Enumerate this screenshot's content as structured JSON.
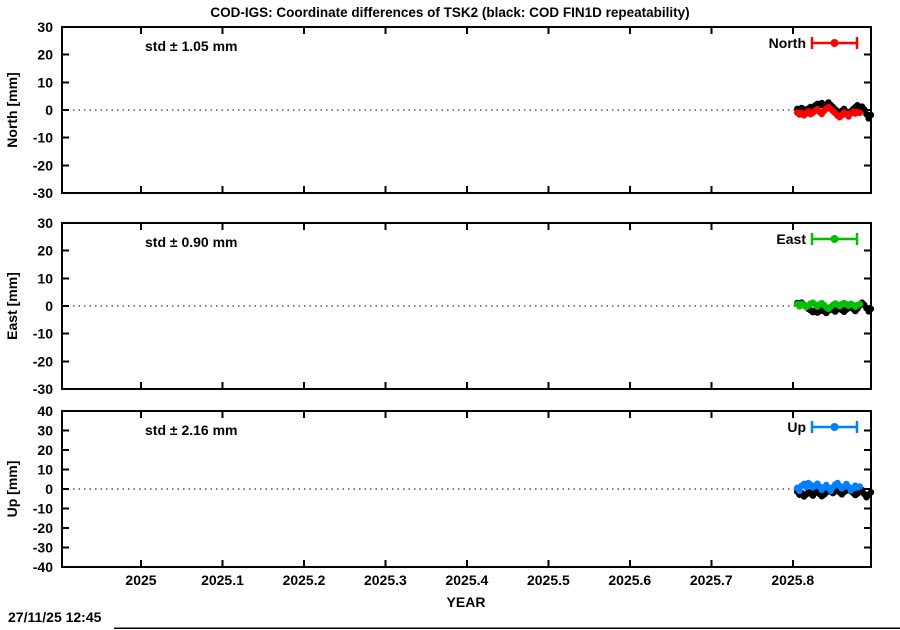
{
  "title": "COD-IGS: Coordinate differences of TSK2 (black: COD FIN1D repeatability)",
  "timestamp": "27/11/25 12:45",
  "x_axis": {
    "label": "YEAR",
    "tick_labels": [
      "2025",
      "2025.1",
      "2025.2",
      "2025.3",
      "2025.4",
      "2025.5",
      "2025.6",
      "2025.7",
      "2025.8"
    ],
    "tick_values": [
      2025,
      2025.1,
      2025.2,
      2025.3,
      2025.4,
      2025.5,
      2025.6,
      2025.7,
      2025.8
    ],
    "xlim": [
      2024.903,
      2025.896
    ]
  },
  "colors": {
    "north": "#ff0000",
    "east": "#00c000",
    "up": "#0080ff",
    "repeatability": "#000000"
  },
  "chart_data": [
    {
      "type": "scatter",
      "id": "north",
      "ylabel": "North [mm]",
      "std_label": "std ± 1.05 mm",
      "std_mm": 1.05,
      "legend": "North",
      "color": "#ff0000",
      "ylim": [
        -30,
        30
      ],
      "yticks": [
        30,
        20,
        10,
        0,
        -10,
        -20,
        -30
      ],
      "ytick_labels": [
        "30",
        "20",
        "10",
        "0",
        "-10",
        "-20",
        "-30"
      ],
      "zero_line": true,
      "series": [
        {
          "name": "COD-IGS North difference",
          "color": "#ff0000",
          "x_start": 2025.8055,
          "x_step": 0.00274,
          "values": [
            -0.9,
            -1.6,
            -1.1,
            -1.9,
            -1.3,
            -0.5,
            -1.5,
            -0.9,
            -0.2,
            0.3,
            -0.7,
            -1.4,
            -0.3,
            0.5,
            1.0,
            0.4,
            -0.4,
            -1.1,
            -2.0,
            -2.6,
            -1.8,
            -0.9,
            -1.5,
            -2.3,
            -1.2,
            -0.6,
            -1.3,
            -0.8,
            -1.0
          ]
        },
        {
          "name": "COD FIN1D repeatability",
          "color": "#000000",
          "x_start": 2025.8055,
          "x_step": 0.00274,
          "values": [
            0.4,
            -0.2,
            0.7,
            0.2,
            -0.5,
            0.5,
            1.1,
            0.6,
            1.6,
            2.2,
            1.8,
            2.5,
            1.4,
            2.0,
            2.7,
            1.8,
            1.0,
            0.2,
            -0.5,
            -1.0,
            -0.3,
            0.4,
            -0.7,
            -1.3,
            -0.5,
            0.3,
            1.0,
            1.7,
            0.5,
            1.2,
            0.2,
            -1.5,
            -3.0,
            -1.8
          ]
        }
      ]
    },
    {
      "type": "scatter",
      "id": "east",
      "ylabel": "East [mm]",
      "std_label": "std ± 0.90 mm",
      "std_mm": 0.9,
      "legend": "East",
      "color": "#00c000",
      "ylim": [
        -30,
        30
      ],
      "yticks": [
        30,
        20,
        10,
        0,
        -10,
        -20,
        -30
      ],
      "ytick_labels": [
        "30",
        "20",
        "10",
        "0",
        "-10",
        "-20",
        "-30"
      ],
      "zero_line": true,
      "series": [
        {
          "name": "COD-IGS East difference",
          "color": "#00c000",
          "x_start": 2025.8055,
          "x_step": 0.00274,
          "values": [
            0.7,
            -0.1,
            0.8,
            0.3,
            -0.4,
            0.2,
            0.9,
            1.2,
            0.5,
            -0.2,
            0.6,
            1.0,
            0.3,
            -0.5,
            -1.0,
            -0.3,
            0.4,
            0.9,
            0.5,
            -0.1,
            0.7,
            1.1,
            0.6,
            0.1,
            0.8,
            0.4,
            -0.3,
            0.3,
            0.7
          ]
        },
        {
          "name": "COD FIN1D repeatability",
          "color": "#000000",
          "x_start": 2025.8055,
          "x_step": 0.00274,
          "values": [
            1.1,
            0.5,
            1.2,
            0.4,
            -0.3,
            -1.0,
            -1.6,
            -2.2,
            -1.7,
            -2.4,
            -1.8,
            -1.1,
            -1.9,
            -2.5,
            -1.6,
            -0.8,
            -1.4,
            -2.0,
            -1.2,
            -0.6,
            -1.5,
            -2.1,
            -1.3,
            -0.7,
            -0.2,
            -1.0,
            -1.8,
            -0.9,
            0.3,
            1.2,
            0.4,
            -0.8,
            -1.9,
            -1.0
          ]
        }
      ]
    },
    {
      "type": "scatter",
      "id": "up",
      "ylabel": "Up [mm]",
      "std_label": "std ± 2.16 mm",
      "std_mm": 2.16,
      "legend": "Up",
      "color": "#0080ff",
      "ylim": [
        -40,
        40
      ],
      "yticks": [
        40,
        30,
        20,
        10,
        0,
        -10,
        -20,
        -30,
        -40
      ],
      "ytick_labels": [
        "40",
        "30",
        "20",
        "10",
        "0",
        "-10",
        "-20",
        "-30",
        "-40"
      ],
      "zero_line": true,
      "series": [
        {
          "name": "COD-IGS Up difference",
          "color": "#0080ff",
          "x_start": 2025.8055,
          "x_step": 0.00274,
          "values": [
            0.6,
            -1.0,
            1.7,
            2.6,
            1.1,
            3.1,
            2.1,
            0.9,
            1.6,
            2.7,
            1.3,
            -0.4,
            0.7,
            2.0,
            0.5,
            -0.9,
            0.9,
            2.3,
            3.0,
            1.5,
            0.3,
            1.2,
            2.5,
            1.0,
            -0.7,
            0.4,
            1.7,
            0.8,
            1.3
          ]
        },
        {
          "name": "COD FIN1D repeatability",
          "color": "#000000",
          "x_start": 2025.8055,
          "x_step": 0.00274,
          "values": [
            -1.4,
            -2.9,
            -2.1,
            -3.8,
            -2.7,
            -1.5,
            -2.3,
            -3.4,
            -2.0,
            -1.0,
            -2.5,
            -3.7,
            -2.8,
            -1.7,
            -0.6,
            -1.3,
            -2.1,
            -1.1,
            -0.4,
            -1.7,
            -2.7,
            -1.5,
            -0.8,
            0.2,
            -1.0,
            -2.0,
            -3.1,
            -2.3,
            -1.3,
            -0.5,
            -2.5,
            -4.2,
            -2.9,
            -1.7
          ]
        }
      ]
    }
  ]
}
